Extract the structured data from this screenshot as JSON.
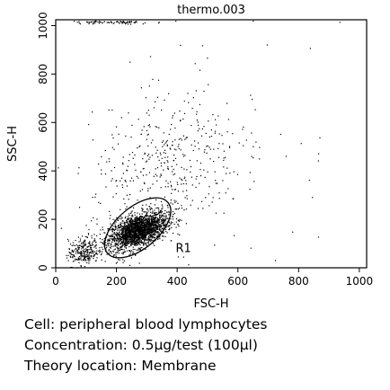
{
  "chart_data": {
    "type": "scatter",
    "title": "thermo.003",
    "xlabel": "FSC-H",
    "ylabel": "SSC-H",
    "xlim": [
      0,
      1024
    ],
    "ylim": [
      0,
      1024
    ],
    "xticks": [
      "0",
      "200",
      "400",
      "600",
      "800",
      "1000"
    ],
    "yticks": [
      "0",
      "200",
      "400",
      "600",
      "800",
      "1000"
    ],
    "xtick_values": [
      0,
      200,
      400,
      600,
      800,
      1000
    ],
    "ytick_values": [
      0,
      200,
      400,
      600,
      800,
      1000
    ],
    "grid": false,
    "gate": {
      "label": "R1",
      "shape": "ellipse",
      "center": [
        270,
        165
      ],
      "rx": 130,
      "ry": 110,
      "rotation_deg": -40
    },
    "populations": [
      {
        "description": "dense lymphocyte cluster",
        "center": [
          270,
          155
        ],
        "spread": [
          48,
          38
        ],
        "count": 2200,
        "corr": 0.5
      },
      {
        "description": "low FSC debris",
        "center": [
          90,
          70
        ],
        "spread": [
          25,
          30
        ],
        "count": 260,
        "corr": 0.2
      },
      {
        "description": "scattered higher SSC events",
        "center": [
          360,
          420
        ],
        "spread": [
          120,
          150
        ],
        "count": 420,
        "corr": 0.3
      },
      {
        "description": "top-axis saturated events",
        "center": [
          180,
          1015
        ],
        "spread": [
          70,
          4
        ],
        "count": 80,
        "corr": 0.0
      },
      {
        "description": "diffuse background",
        "center": [
          500,
          500
        ],
        "spread": [
          320,
          320
        ],
        "count": 90,
        "corr": 0.0
      }
    ]
  },
  "caption": {
    "line1": "Cell: peripheral blood lymphocytes",
    "line2": "Concentration: 0.5µg/test (100µl)",
    "line3": "Theory location: Membrane"
  }
}
